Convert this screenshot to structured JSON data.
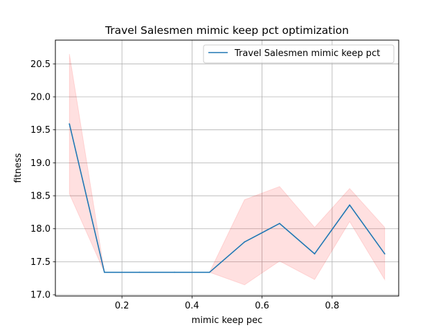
{
  "chart_data": {
    "type": "line",
    "title": "Travel Salesmen mimic keep pct optimization",
    "xlabel": "mimic keep pec",
    "ylabel": "fitness",
    "xlim": [
      0.01,
      0.99
    ],
    "ylim": [
      16.98,
      20.86
    ],
    "xticks": [
      0.2,
      0.4,
      0.6,
      0.8
    ],
    "xtick_labels": [
      "0.2",
      "0.4",
      "0.6",
      "0.8"
    ],
    "yticks": [
      17.0,
      17.5,
      18.0,
      18.5,
      19.0,
      19.5,
      20.0,
      20.5
    ],
    "ytick_labels": [
      "17.0",
      "17.5",
      "18.0",
      "18.5",
      "19.0",
      "19.5",
      "20.0",
      "20.5"
    ],
    "grid": true,
    "legend_position": "top-right",
    "series": [
      {
        "name": "Travel Salesmen mimic keep pct",
        "color": "#1f77b4",
        "x": [
          0.05,
          0.15,
          0.25,
          0.35,
          0.45,
          0.55,
          0.65,
          0.75,
          0.85,
          0.95
        ],
        "values": [
          19.59,
          17.34,
          17.34,
          17.34,
          17.34,
          17.8,
          18.08,
          17.62,
          18.36,
          17.62
        ],
        "band_lower": [
          18.53,
          17.34,
          17.34,
          17.34,
          17.34,
          17.15,
          17.51,
          17.23,
          18.11,
          17.23
        ],
        "band_upper": [
          20.65,
          17.34,
          17.34,
          17.34,
          17.34,
          18.44,
          18.64,
          18.02,
          18.61,
          18.02
        ],
        "band_color": "#ff0000"
      }
    ]
  }
}
